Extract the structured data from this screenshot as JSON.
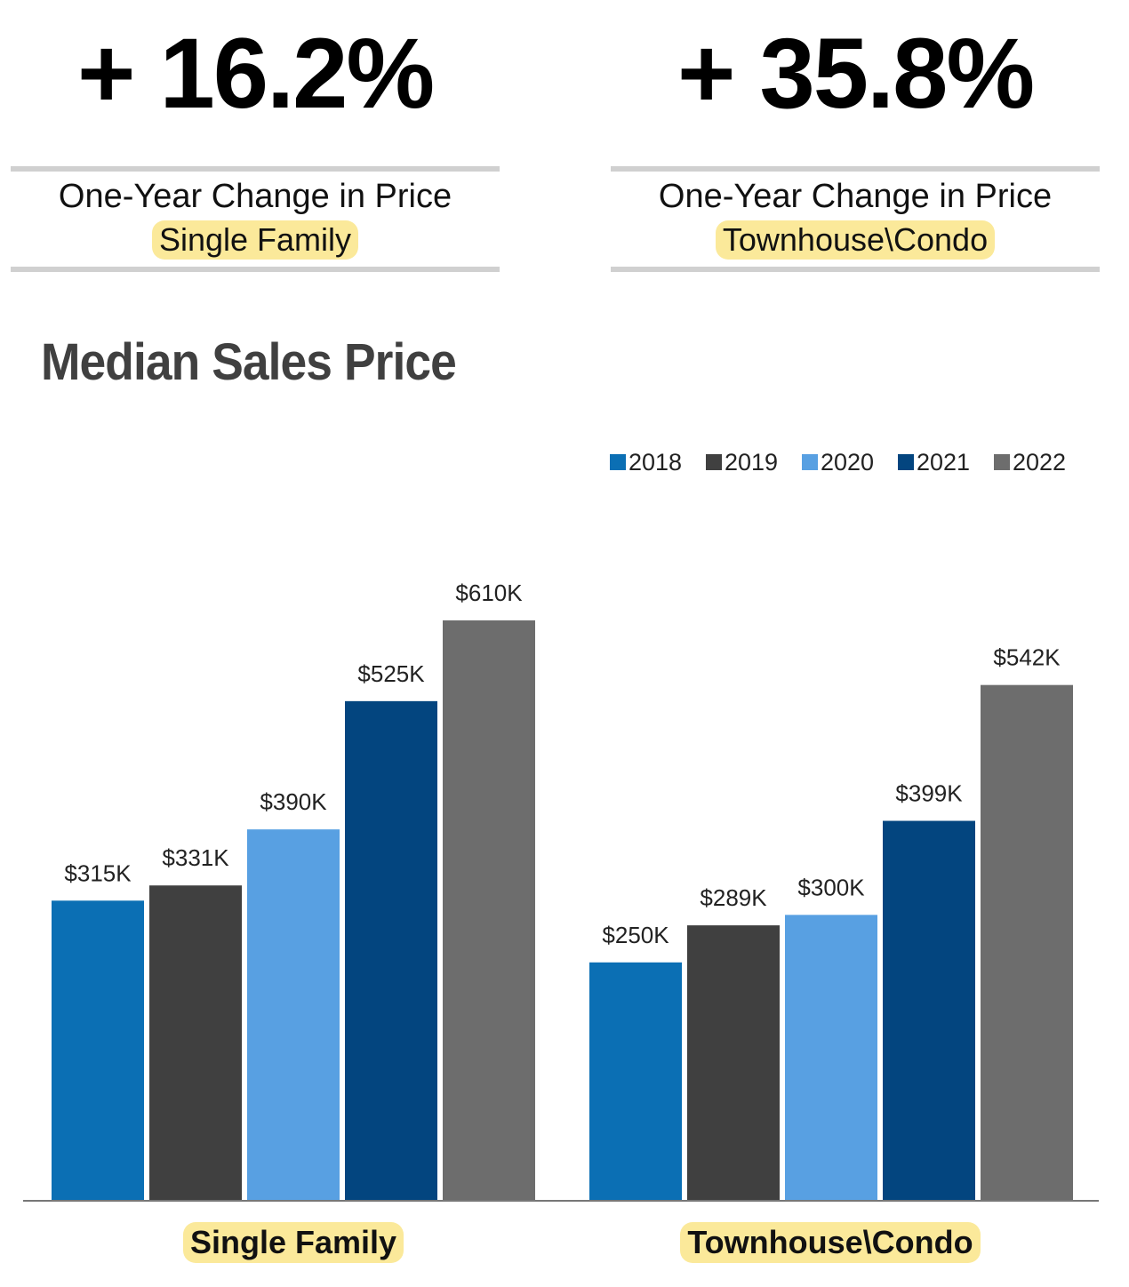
{
  "stats": [
    {
      "value": "+ 16.2%",
      "label": "One-Year Change in Price",
      "sub": "Single Family"
    },
    {
      "value": "+ 35.8%",
      "label": "One-Year Change in Price",
      "sub": "Townhouse\\Condo"
    }
  ],
  "section_title": "Median Sales Price",
  "colors": {
    "2018": "#0b6fb4",
    "2019": "#404040",
    "2020": "#58a0e2",
    "2021": "#03457f",
    "2022": "#6d6d6d",
    "highlight": "#fbe99a"
  },
  "chart_data": {
    "type": "bar",
    "title": "Median Sales Price",
    "categories": [
      "Single Family",
      "Townhouse\\Condo"
    ],
    "series": [
      {
        "name": "2018",
        "values": [
          315,
          250
        ],
        "labels": [
          "$315K",
          "$250K"
        ]
      },
      {
        "name": "2019",
        "values": [
          331,
          289
        ],
        "labels": [
          "$331K",
          "$289K"
        ]
      },
      {
        "name": "2020",
        "values": [
          390,
          300
        ],
        "labels": [
          "$390K",
          "$300K"
        ]
      },
      {
        "name": "2021",
        "values": [
          525,
          399
        ],
        "labels": [
          "$525K",
          "$399K"
        ]
      },
      {
        "name": "2022",
        "values": [
          610,
          542
        ],
        "labels": [
          "$610K",
          "$542K"
        ]
      }
    ],
    "ylim": [
      0,
      610
    ],
    "legend_position": "top-right",
    "grid": false
  }
}
